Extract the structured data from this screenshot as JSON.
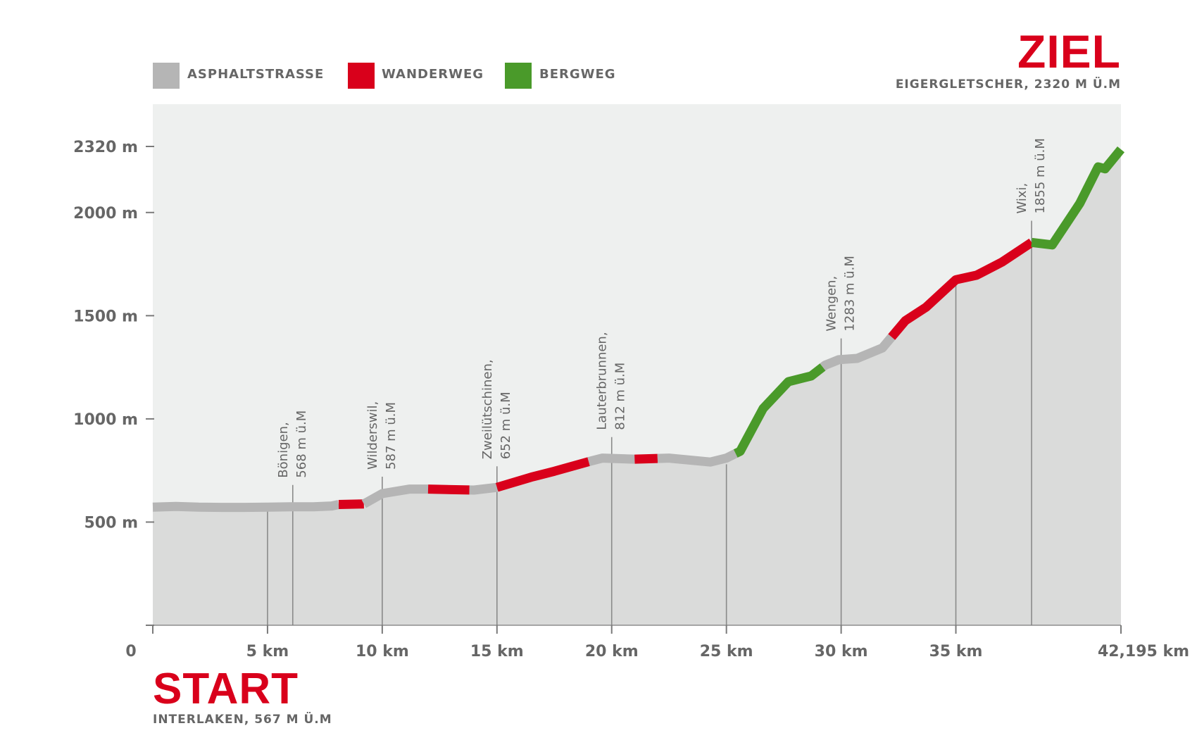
{
  "legend": {
    "items": [
      {
        "label": "ASPHALTSTRASSE",
        "color": "#b5b5b5"
      },
      {
        "label": "WANDERWEG",
        "color": "#d9001b"
      },
      {
        "label": "BERGWEG",
        "color": "#4a9a2a"
      }
    ]
  },
  "finish": {
    "title": "ZIEL",
    "subtitle": "EIGERGLETSCHER, 2320 M Ü.M"
  },
  "start": {
    "title": "START",
    "subtitle": "INTERLAKEN, 567 M Ü.M"
  },
  "colors": {
    "plot_background": "#eef0ef",
    "area_fill": "#dadbda",
    "axis": "#7a7a7a",
    "text": "#666666"
  },
  "chart_data": {
    "type": "area",
    "xlim": [
      0,
      42.195
    ],
    "ylim": [
      0,
      2320
    ],
    "y_ticks": [
      {
        "value": 2320,
        "label": "2320 m"
      },
      {
        "value": 2000,
        "label": "2000 m"
      },
      {
        "value": 1500,
        "label": "1500 m"
      },
      {
        "value": 1000,
        "label": "1000 m"
      },
      {
        "value": 500,
        "label": "500 m"
      }
    ],
    "x_ticks": [
      {
        "value": 0,
        "label": "0"
      },
      {
        "value": 5,
        "label": "5 km"
      },
      {
        "value": 10,
        "label": "10 km"
      },
      {
        "value": 15,
        "label": "15 km"
      },
      {
        "value": 20,
        "label": "20 km"
      },
      {
        "value": 25,
        "label": "25 km"
      },
      {
        "value": 30,
        "label": "30 km"
      },
      {
        "value": 35,
        "label": "35 km"
      },
      {
        "value": 42.195,
        "label": "42,195 km"
      }
    ],
    "profile": [
      [
        0,
        572
      ],
      [
        1,
        576
      ],
      [
        2,
        572
      ],
      [
        3,
        571
      ],
      [
        4,
        571
      ],
      [
        5,
        572
      ],
      [
        6,
        574
      ],
      [
        7,
        574
      ],
      [
        7.8,
        578
      ],
      [
        8.1,
        585
      ],
      [
        9.2,
        588
      ],
      [
        10,
        638
      ],
      [
        11.2,
        660
      ],
      [
        12,
        660
      ],
      [
        13,
        657
      ],
      [
        14,
        655
      ],
      [
        15,
        668
      ],
      [
        16.5,
        718
      ],
      [
        17.5,
        746
      ],
      [
        19,
        793
      ],
      [
        19.6,
        810
      ],
      [
        21,
        805
      ],
      [
        22.5,
        810
      ],
      [
        24.3,
        791
      ],
      [
        25,
        810
      ],
      [
        25.6,
        843
      ],
      [
        26.6,
        1050
      ],
      [
        27.7,
        1180
      ],
      [
        28.7,
        1208
      ],
      [
        29.3,
        1260
      ],
      [
        29.9,
        1287
      ],
      [
        30.7,
        1293
      ],
      [
        31.8,
        1344
      ],
      [
        32.3,
        1410
      ],
      [
        32.8,
        1476
      ],
      [
        33.7,
        1541
      ],
      [
        35,
        1674
      ],
      [
        35.9,
        1696
      ],
      [
        37,
        1759
      ],
      [
        38.3,
        1855
      ],
      [
        39.2,
        1843
      ],
      [
        40.4,
        2044
      ],
      [
        41.2,
        2221
      ],
      [
        41.5,
        2212
      ],
      [
        42.195,
        2306
      ]
    ],
    "segments": [
      {
        "type": "ASPHALTSTRASSE",
        "from": 0,
        "to": 8.1
      },
      {
        "type": "WANDERWEG",
        "from": 8.1,
        "to": 9.2
      },
      {
        "type": "ASPHALTSTRASSE",
        "from": 9.2,
        "to": 12
      },
      {
        "type": "WANDERWEG",
        "from": 12,
        "to": 13.8
      },
      {
        "type": "ASPHALTSTRASSE",
        "from": 13.8,
        "to": 15
      },
      {
        "type": "WANDERWEG",
        "from": 15,
        "to": 19
      },
      {
        "type": "ASPHALTSTRASSE",
        "from": 19,
        "to": 21
      },
      {
        "type": "WANDERWEG",
        "from": 21,
        "to": 22
      },
      {
        "type": "ASPHALTSTRASSE",
        "from": 22,
        "to": 25.4
      },
      {
        "type": "BERGWEG",
        "from": 25.4,
        "to": 29.2
      },
      {
        "type": "ASPHALTSTRASSE",
        "from": 29.2,
        "to": 32.2
      },
      {
        "type": "WANDERWEG",
        "from": 32.2,
        "to": 38.3
      },
      {
        "type": "BERGWEG",
        "from": 38.3,
        "to": 42.195
      }
    ],
    "markers": [
      {
        "km": 5,
        "line_top": 560
      },
      {
        "km": 6.1,
        "line_top": 680,
        "lines": [
          "Bönigen,",
          "568 m ü.M"
        ]
      },
      {
        "km": 10,
        "line_top": 720,
        "lines": [
          "Wilderswil,",
          "587 m ü.M"
        ]
      },
      {
        "km": 15,
        "line_top": 770,
        "lines": [
          "Zweilütschinen,",
          "652 m ü.M"
        ]
      },
      {
        "km": 20,
        "line_top": 912,
        "lines": [
          "Lauterbrunnen,",
          "812 m ü.M"
        ]
      },
      {
        "km": 25,
        "line_top": 780
      },
      {
        "km": 30,
        "line_top": 1390,
        "lines": [
          "Wengen,",
          "1283 m ü.M"
        ]
      },
      {
        "km": 35,
        "line_top": 1660
      },
      {
        "km": 38.3,
        "line_top": 1960,
        "lines": [
          "Wixi,",
          "1855 m ü.M"
        ]
      }
    ]
  }
}
